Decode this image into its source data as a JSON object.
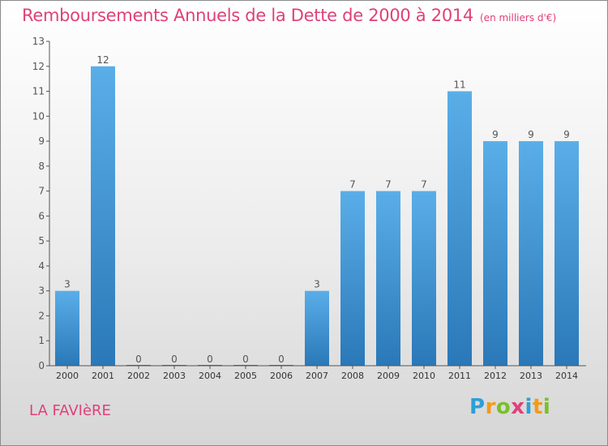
{
  "header": {
    "title": "Remboursements Annuels de la Dette de 2000 à 2014",
    "unit": "(en milliers d'€)"
  },
  "commune": "LA FAVIèRE",
  "logo": {
    "letters": [
      "P",
      "r",
      "o",
      "x",
      "i",
      "t",
      "i"
    ],
    "colors": [
      "#2d9fd8",
      "#f29a1d",
      "#7bbf2a",
      "#e0407a"
    ]
  },
  "colors": {
    "bar_light": "#5aaee8",
    "bar_dark": "#2a78b8",
    "title": "#e0407a",
    "axis": "#555555"
  },
  "chart_data": {
    "type": "bar",
    "categories": [
      "2000",
      "2001",
      "2002",
      "2003",
      "2004",
      "2005",
      "2006",
      "2007",
      "2008",
      "2009",
      "2010",
      "2011",
      "2012",
      "2013",
      "2014"
    ],
    "values": [
      3,
      12,
      0,
      0,
      0,
      0,
      0,
      3,
      7,
      7,
      7,
      11,
      9,
      9,
      9
    ],
    "data_labels": [
      "3",
      "12",
      "0",
      "0",
      "0",
      "0",
      "0",
      "3",
      "7",
      "7",
      "7",
      "11",
      "9",
      "9",
      "9"
    ],
    "yticks": [
      "0",
      "1",
      "2",
      "3",
      "4",
      "5",
      "6",
      "7",
      "8",
      "9",
      "10",
      "11",
      "12",
      "13"
    ],
    "ylim": [
      0,
      13
    ],
    "grid": false,
    "legend": "none"
  }
}
